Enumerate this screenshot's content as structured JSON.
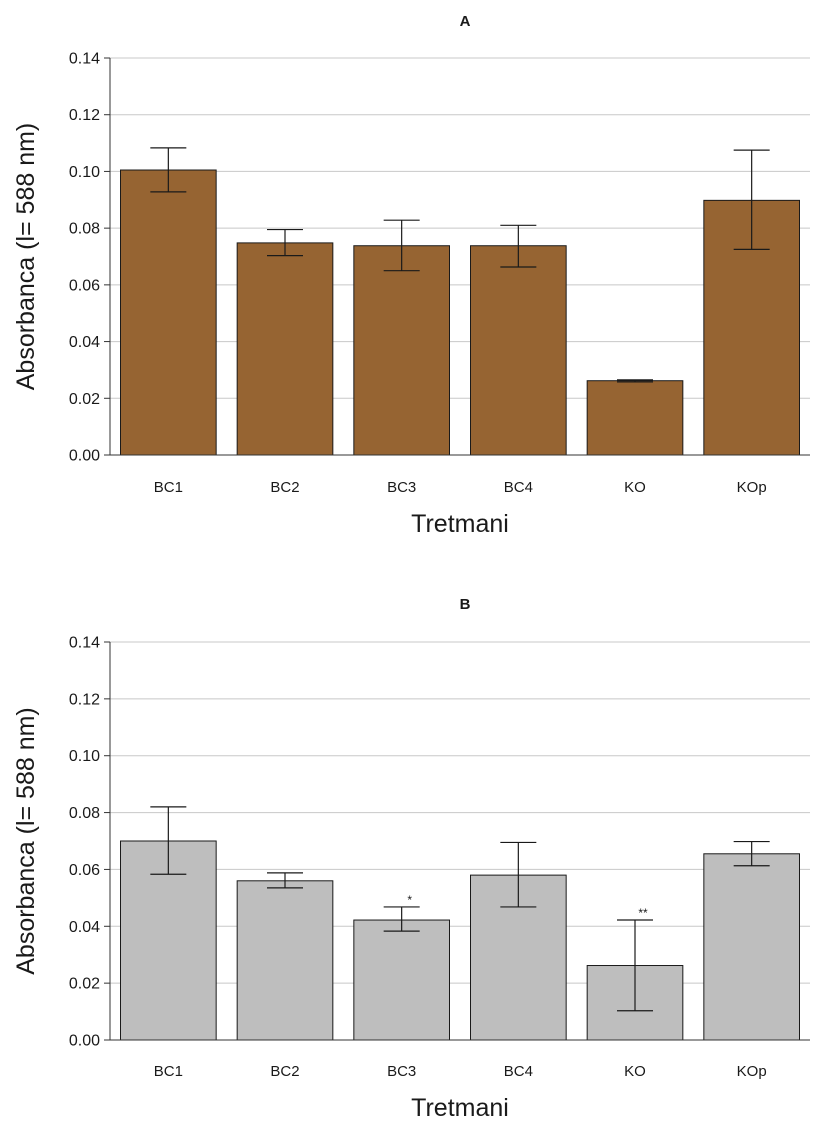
{
  "chart_data": [
    {
      "type": "bar",
      "title": "A",
      "xlabel": "Tretmani",
      "ylabel": "Absorbanca (l= 588 nm)",
      "ylim": [
        0,
        0.14
      ],
      "yticks": [
        "0.00",
        "0.02",
        "0.04",
        "0.06",
        "0.08",
        "0.10",
        "0.12",
        "0.14"
      ],
      "ytick_values": [
        0,
        0.02,
        0.04,
        0.06,
        0.08,
        0.1,
        0.12,
        0.14
      ],
      "grid": true,
      "bar_color": "#966432",
      "categories": [
        "BC1",
        "BC2",
        "BC3",
        "BC4",
        "KO",
        "KOp"
      ],
      "values": [
        0.1005,
        0.0748,
        0.0738,
        0.0738,
        0.0262,
        0.0898
      ],
      "error_low": [
        0.0928,
        0.0703,
        0.065,
        0.0663,
        0.0258,
        0.0725
      ],
      "error_high": [
        0.1083,
        0.0795,
        0.0828,
        0.081,
        0.0265,
        0.1075
      ],
      "annotations": [
        "",
        "",
        "",
        "",
        "",
        ""
      ]
    },
    {
      "type": "bar",
      "title": "B",
      "xlabel": "Tretmani",
      "ylabel": "Absorbanca (l= 588 nm)",
      "ylim": [
        0,
        0.14
      ],
      "yticks": [
        "0.00",
        "0.02",
        "0.04",
        "0.06",
        "0.08",
        "0.10",
        "0.12",
        "0.14"
      ],
      "ytick_values": [
        0,
        0.02,
        0.04,
        0.06,
        0.08,
        0.1,
        0.12,
        0.14
      ],
      "grid": true,
      "bar_color": "#bebebe",
      "categories": [
        "BC1",
        "BC2",
        "BC3",
        "BC4",
        "KO",
        "KOp"
      ],
      "values": [
        0.07,
        0.056,
        0.0422,
        0.058,
        0.0262,
        0.0655
      ],
      "error_low": [
        0.0583,
        0.0535,
        0.0383,
        0.0468,
        0.0103,
        0.0613
      ],
      "error_high": [
        0.082,
        0.0588,
        0.0468,
        0.0695,
        0.0422,
        0.0698
      ],
      "annotations": [
        "",
        "",
        "*",
        "",
        "**",
        ""
      ]
    }
  ]
}
